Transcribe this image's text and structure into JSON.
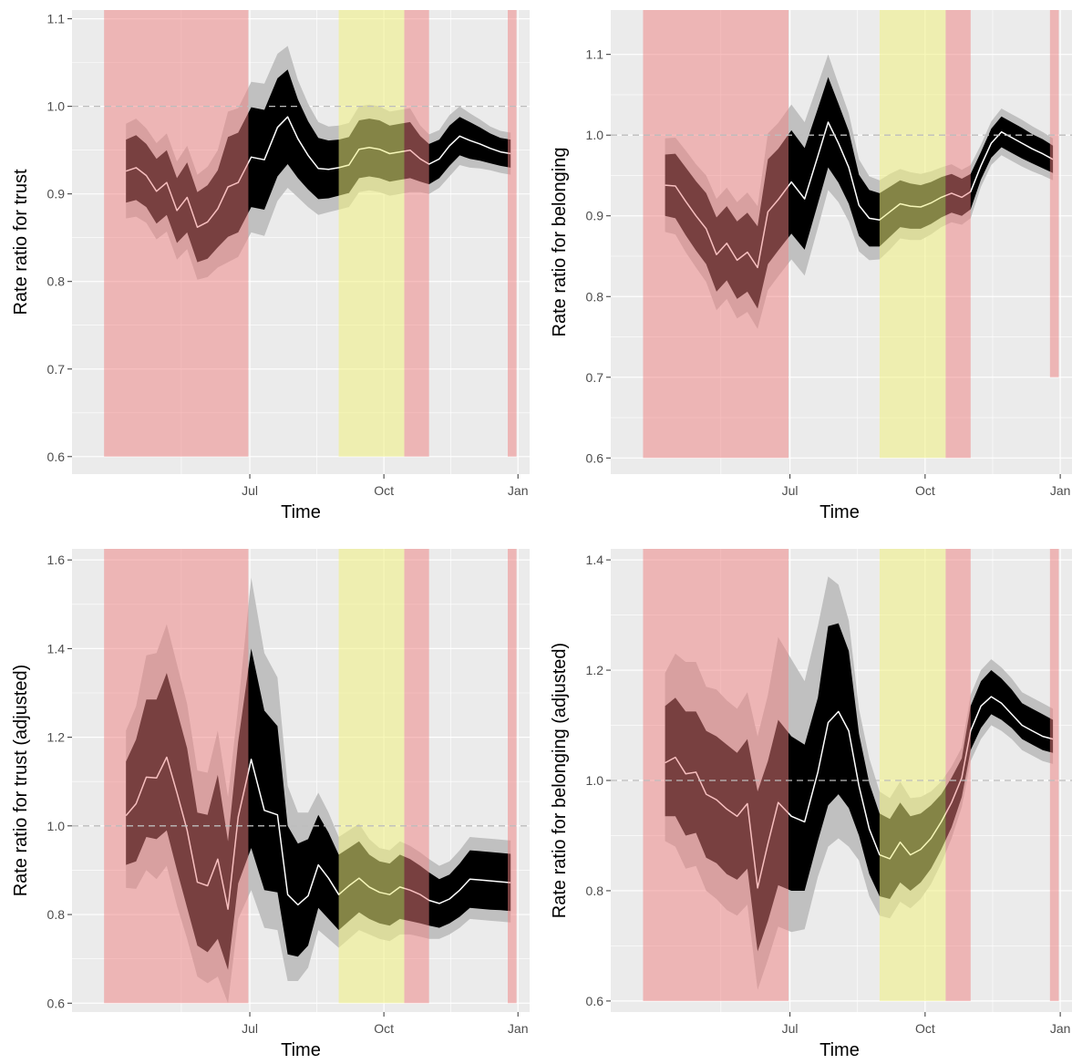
{
  "theme": {
    "panel_bg": "#EBEBEB",
    "grid_major": "#FFFFFF",
    "lockdown_shade": "#F08080",
    "tier_shade": "#F0F080",
    "ci95_color": "#C0C0C0",
    "ci68_color": "#000000",
    "line_color": "#FFFFFF",
    "reference_line_color": "#BDBDBD"
  },
  "chart_data": [
    {
      "type": "line",
      "xlabel": "Time",
      "ylabel": "Rate ratio for trust",
      "x_ticks": [
        "Jul",
        "Oct",
        "Jan"
      ],
      "ylim": [
        0.58,
        1.11
      ],
      "y_ticks": [
        "0.6",
        "0.7",
        "0.8",
        "0.9",
        "1.0",
        "1.1"
      ],
      "reference_line": 1.0,
      "shaded_regions": [
        {
          "kind": "lockdown",
          "start": "2020-03-23",
          "end": "2020-06-30",
          "y_bottom": 0.6
        },
        {
          "kind": "tiers",
          "start": "2020-08-31",
          "end": "2020-10-15",
          "y_bottom": 0.6
        },
        {
          "kind": "lockdown",
          "start": "2020-10-15",
          "end": "2020-11-01",
          "y_bottom": 0.6
        },
        {
          "kind": "lockdown",
          "start": "2020-12-25",
          "end": "2020-12-31",
          "y_bottom": 0.6
        }
      ],
      "dates": [
        "2020-04-07",
        "2020-04-14",
        "2020-04-21",
        "2020-04-28",
        "2020-05-05",
        "2020-05-12",
        "2020-05-19",
        "2020-05-26",
        "2020-06-02",
        "2020-06-09",
        "2020-06-16",
        "2020-06-23",
        "2020-07-02",
        "2020-07-11",
        "2020-07-20",
        "2020-07-27",
        "2020-08-03",
        "2020-08-10",
        "2020-08-17",
        "2020-08-24",
        "2020-08-31",
        "2020-09-07",
        "2020-09-14",
        "2020-09-21",
        "2020-09-28",
        "2020-10-05",
        "2020-10-12",
        "2020-10-19",
        "2020-10-26",
        "2020-11-01",
        "2020-11-08",
        "2020-11-15",
        "2020-11-22",
        "2020-11-29",
        "2020-12-06",
        "2020-12-13",
        "2020-12-20",
        "2020-12-27"
      ],
      "estimate": [
        0.926,
        0.93,
        0.921,
        0.903,
        0.913,
        0.881,
        0.896,
        0.862,
        0.868,
        0.883,
        0.908,
        0.913,
        0.942,
        0.939,
        0.976,
        0.988,
        0.963,
        0.944,
        0.929,
        0.928,
        0.93,
        0.933,
        0.951,
        0.953,
        0.951,
        0.946,
        0.948,
        0.95,
        0.94,
        0.934,
        0.94,
        0.955,
        0.966,
        0.961,
        0.957,
        0.952,
        0.948,
        0.946
      ],
      "ci68_low": [
        0.89,
        0.893,
        0.885,
        0.866,
        0.876,
        0.844,
        0.856,
        0.822,
        0.826,
        0.839,
        0.851,
        0.856,
        0.885,
        0.882,
        0.92,
        0.934,
        0.918,
        0.905,
        0.894,
        0.895,
        0.898,
        0.901,
        0.918,
        0.92,
        0.918,
        0.914,
        0.916,
        0.918,
        0.914,
        0.911,
        0.918,
        0.932,
        0.944,
        0.94,
        0.938,
        0.935,
        0.932,
        0.93
      ],
      "ci68_high": [
        0.962,
        0.967,
        0.957,
        0.94,
        0.95,
        0.918,
        0.936,
        0.902,
        0.91,
        0.927,
        0.965,
        0.97,
        0.999,
        0.996,
        1.032,
        1.042,
        1.008,
        0.983,
        0.964,
        0.961,
        0.962,
        0.965,
        0.984,
        0.986,
        0.984,
        0.978,
        0.98,
        0.982,
        0.966,
        0.957,
        0.962,
        0.978,
        0.988,
        0.982,
        0.976,
        0.969,
        0.964,
        0.962
      ],
      "ci95_low": [
        0.872,
        0.874,
        0.867,
        0.848,
        0.857,
        0.825,
        0.837,
        0.802,
        0.805,
        0.816,
        0.822,
        0.828,
        0.856,
        0.852,
        0.892,
        0.907,
        0.896,
        0.885,
        0.876,
        0.879,
        0.882,
        0.885,
        0.902,
        0.904,
        0.902,
        0.898,
        0.9,
        0.902,
        0.902,
        0.9,
        0.907,
        0.92,
        0.933,
        0.93,
        0.929,
        0.927,
        0.924,
        0.922
      ],
      "ci95_high": [
        0.98,
        0.986,
        0.975,
        0.958,
        0.969,
        0.937,
        0.955,
        0.922,
        0.931,
        0.95,
        0.994,
        0.998,
        1.028,
        1.026,
        1.06,
        1.069,
        1.03,
        1.003,
        0.982,
        0.977,
        0.978,
        0.981,
        1.0,
        1.002,
        1.0,
        0.994,
        0.996,
        0.998,
        0.978,
        0.968,
        0.973,
        0.99,
        1.0,
        0.992,
        0.985,
        0.977,
        0.972,
        0.97
      ]
    },
    {
      "type": "line",
      "xlabel": "Time",
      "ylabel": "Rate ratio for belonging",
      "x_ticks": [
        "Jul",
        "Oct",
        "Jan"
      ],
      "ylim": [
        0.58,
        1.155
      ],
      "y_ticks": [
        "0.6",
        "0.7",
        "0.8",
        "0.9",
        "1.0",
        "1.1"
      ],
      "reference_line": 1.0,
      "shaded_regions": [
        {
          "kind": "lockdown",
          "start": "2020-03-23",
          "end": "2020-06-30",
          "y_bottom": 0.6
        },
        {
          "kind": "tiers",
          "start": "2020-08-31",
          "end": "2020-10-15",
          "y_bottom": 0.6
        },
        {
          "kind": "lockdown",
          "start": "2020-10-15",
          "end": "2020-11-01",
          "y_bottom": 0.6
        },
        {
          "kind": "lockdown",
          "start": "2020-12-25",
          "end": "2020-12-31",
          "y_bottom": 0.7
        }
      ],
      "dates": [
        "2020-04-07",
        "2020-04-14",
        "2020-04-21",
        "2020-04-28",
        "2020-05-05",
        "2020-05-12",
        "2020-05-19",
        "2020-05-26",
        "2020-06-02",
        "2020-06-09",
        "2020-06-16",
        "2020-06-23",
        "2020-07-02",
        "2020-07-11",
        "2020-07-20",
        "2020-07-27",
        "2020-08-03",
        "2020-08-10",
        "2020-08-17",
        "2020-08-24",
        "2020-08-31",
        "2020-09-07",
        "2020-09-14",
        "2020-09-21",
        "2020-09-28",
        "2020-10-05",
        "2020-10-12",
        "2020-10-19",
        "2020-10-26",
        "2020-11-01",
        "2020-11-08",
        "2020-11-15",
        "2020-11-22",
        "2020-11-29",
        "2020-12-06",
        "2020-12-13",
        "2020-12-20",
        "2020-12-27"
      ],
      "estimate": [
        0.938,
        0.937,
        0.918,
        0.9,
        0.884,
        0.852,
        0.866,
        0.845,
        0.855,
        0.836,
        0.905,
        0.92,
        0.942,
        0.921,
        0.974,
        1.016,
        0.99,
        0.96,
        0.913,
        0.897,
        0.895,
        0.905,
        0.915,
        0.912,
        0.911,
        0.916,
        0.923,
        0.928,
        0.923,
        0.93,
        0.962,
        0.99,
        1.004,
        0.997,
        0.99,
        0.983,
        0.977,
        0.97
      ],
      "ci68_low": [
        0.9,
        0.897,
        0.876,
        0.857,
        0.84,
        0.806,
        0.82,
        0.797,
        0.806,
        0.785,
        0.84,
        0.857,
        0.878,
        0.858,
        0.915,
        0.96,
        0.941,
        0.915,
        0.875,
        0.862,
        0.862,
        0.874,
        0.886,
        0.884,
        0.884,
        0.89,
        0.898,
        0.904,
        0.9,
        0.908,
        0.945,
        0.972,
        0.985,
        0.978,
        0.971,
        0.965,
        0.959,
        0.953
      ],
      "ci68_high": [
        0.976,
        0.977,
        0.96,
        0.943,
        0.928,
        0.898,
        0.912,
        0.893,
        0.904,
        0.887,
        0.97,
        0.983,
        1.006,
        0.984,
        1.033,
        1.072,
        1.039,
        1.005,
        0.951,
        0.932,
        0.928,
        0.936,
        0.944,
        0.94,
        0.938,
        0.942,
        0.948,
        0.952,
        0.946,
        0.952,
        0.979,
        1.008,
        1.023,
        1.016,
        1.009,
        1.001,
        0.995,
        0.987
      ],
      "ci95_low": [
        0.88,
        0.877,
        0.855,
        0.836,
        0.818,
        0.783,
        0.797,
        0.773,
        0.781,
        0.76,
        0.808,
        0.825,
        0.846,
        0.826,
        0.885,
        0.932,
        0.917,
        0.893,
        0.856,
        0.845,
        0.846,
        0.858,
        0.872,
        0.87,
        0.87,
        0.877,
        0.886,
        0.892,
        0.889,
        0.897,
        0.936,
        0.963,
        0.975,
        0.968,
        0.961,
        0.955,
        0.95,
        0.944
      ],
      "ci95_high": [
        0.996,
        0.997,
        0.981,
        0.964,
        0.95,
        0.921,
        0.935,
        0.917,
        0.929,
        0.912,
        1.002,
        1.015,
        1.038,
        1.016,
        1.063,
        1.1,
        1.063,
        1.027,
        0.97,
        0.949,
        0.944,
        0.952,
        0.958,
        0.954,
        0.952,
        0.955,
        0.96,
        0.964,
        0.957,
        0.963,
        0.988,
        1.017,
        1.033,
        1.026,
        1.019,
        1.011,
        1.004,
        0.996
      ]
    },
    {
      "type": "line",
      "xlabel": "Time",
      "ylabel": "Rate ratio for trust (adjusted)",
      "x_ticks": [
        "Jul",
        "Oct",
        "Jan"
      ],
      "ylim": [
        0.58,
        1.625
      ],
      "y_ticks": [
        "0.6",
        "0.8",
        "1.0",
        "1.2",
        "1.4",
        "1.6"
      ],
      "reference_line": 1.0,
      "shaded_regions": [
        {
          "kind": "lockdown",
          "start": "2020-03-23",
          "end": "2020-06-30",
          "y_bottom": 0.6
        },
        {
          "kind": "tiers",
          "start": "2020-08-31",
          "end": "2020-10-15",
          "y_bottom": 0.6
        },
        {
          "kind": "lockdown",
          "start": "2020-10-15",
          "end": "2020-11-01",
          "y_bottom": 0.6
        },
        {
          "kind": "lockdown",
          "start": "2020-12-25",
          "end": "2020-12-31",
          "y_bottom": 0.6
        }
      ],
      "dates": [
        "2020-04-07",
        "2020-04-14",
        "2020-04-21",
        "2020-04-28",
        "2020-05-05",
        "2020-05-12",
        "2020-05-19",
        "2020-05-26",
        "2020-06-02",
        "2020-06-09",
        "2020-06-16",
        "2020-06-23",
        "2020-07-02",
        "2020-07-11",
        "2020-07-20",
        "2020-07-27",
        "2020-08-03",
        "2020-08-10",
        "2020-08-17",
        "2020-08-24",
        "2020-08-31",
        "2020-09-07",
        "2020-09-14",
        "2020-09-21",
        "2020-09-28",
        "2020-10-05",
        "2020-10-12",
        "2020-10-19",
        "2020-10-26",
        "2020-11-01",
        "2020-11-08",
        "2020-11-15",
        "2020-11-22",
        "2020-11-29",
        "2020-12-06",
        "2020-12-13",
        "2020-12-20",
        "2020-12-27"
      ],
      "estimate": [
        1.023,
        1.05,
        1.11,
        1.108,
        1.155,
        1.075,
        0.99,
        0.873,
        0.865,
        0.925,
        0.812,
        1.02,
        1.15,
        1.035,
        1.025,
        0.845,
        0.822,
        0.842,
        0.912,
        0.882,
        0.845,
        0.865,
        0.882,
        0.862,
        0.85,
        0.845,
        0.862,
        0.855,
        0.845,
        0.832,
        0.825,
        0.835,
        0.855,
        0.88,
        0.878,
        0.876,
        0.874,
        0.872
      ],
      "ci68_low": [
        0.912,
        0.92,
        0.975,
        0.97,
        0.99,
        0.9,
        0.815,
        0.73,
        0.715,
        0.745,
        0.675,
        0.87,
        0.95,
        0.855,
        0.85,
        0.71,
        0.705,
        0.73,
        0.815,
        0.79,
        0.765,
        0.785,
        0.805,
        0.79,
        0.78,
        0.775,
        0.79,
        0.785,
        0.78,
        0.775,
        0.77,
        0.78,
        0.795,
        0.815,
        0.813,
        0.811,
        0.81,
        0.808
      ],
      "ci68_high": [
        1.145,
        1.195,
        1.285,
        1.285,
        1.345,
        1.26,
        1.175,
        1.03,
        1.025,
        1.115,
        0.965,
        1.19,
        1.4,
        1.26,
        1.225,
        1.0,
        0.96,
        0.97,
        1.025,
        0.985,
        0.935,
        0.95,
        0.965,
        0.935,
        0.92,
        0.915,
        0.935,
        0.925,
        0.91,
        0.895,
        0.88,
        0.89,
        0.915,
        0.945,
        0.943,
        0.941,
        0.939,
        0.937
      ],
      "ci95_low": [
        0.86,
        0.858,
        0.9,
        0.88,
        0.91,
        0.82,
        0.745,
        0.66,
        0.645,
        0.66,
        0.6,
        0.79,
        0.855,
        0.77,
        0.765,
        0.65,
        0.65,
        0.68,
        0.765,
        0.745,
        0.725,
        0.745,
        0.765,
        0.755,
        0.745,
        0.74,
        0.755,
        0.755,
        0.75,
        0.745,
        0.745,
        0.755,
        0.77,
        0.79,
        0.788,
        0.786,
        0.784,
        0.782
      ],
      "ci95_high": [
        1.215,
        1.27,
        1.385,
        1.39,
        1.455,
        1.365,
        1.275,
        1.125,
        1.12,
        1.215,
        1.065,
        1.27,
        1.56,
        1.39,
        1.335,
        1.09,
        1.03,
        1.03,
        1.075,
        1.03,
        0.975,
        0.99,
        1.005,
        0.97,
        0.95,
        0.945,
        0.965,
        0.955,
        0.94,
        0.925,
        0.91,
        0.92,
        0.945,
        0.975,
        0.973,
        0.971,
        0.969,
        0.967
      ]
    },
    {
      "type": "line",
      "xlabel": "Time",
      "ylabel": "Rate ratio for belonging (adjusted)",
      "x_ticks": [
        "Jul",
        "Oct",
        "Jan"
      ],
      "ylim": [
        0.58,
        1.42
      ],
      "y_ticks": [
        "0.6",
        "0.8",
        "1.0",
        "1.2",
        "1.4"
      ],
      "reference_line": 1.0,
      "shaded_regions": [
        {
          "kind": "lockdown",
          "start": "2020-03-23",
          "end": "2020-06-30",
          "y_bottom": 0.6
        },
        {
          "kind": "tiers",
          "start": "2020-08-31",
          "end": "2020-10-15",
          "y_bottom": 0.6
        },
        {
          "kind": "lockdown",
          "start": "2020-10-15",
          "end": "2020-11-01",
          "y_bottom": 0.6
        },
        {
          "kind": "lockdown",
          "start": "2020-12-25",
          "end": "2020-12-31",
          "y_bottom": 0.6
        }
      ],
      "dates": [
        "2020-04-07",
        "2020-04-14",
        "2020-04-21",
        "2020-04-28",
        "2020-05-05",
        "2020-05-12",
        "2020-05-19",
        "2020-05-26",
        "2020-06-02",
        "2020-06-09",
        "2020-06-16",
        "2020-06-23",
        "2020-07-02",
        "2020-07-11",
        "2020-07-20",
        "2020-07-27",
        "2020-08-03",
        "2020-08-10",
        "2020-08-17",
        "2020-08-24",
        "2020-08-31",
        "2020-09-07",
        "2020-09-14",
        "2020-09-21",
        "2020-09-28",
        "2020-10-05",
        "2020-10-12",
        "2020-10-19",
        "2020-10-26",
        "2020-11-01",
        "2020-11-08",
        "2020-11-15",
        "2020-11-22",
        "2020-11-29",
        "2020-12-06",
        "2020-12-13",
        "2020-12-20",
        "2020-12-27"
      ],
      "estimate": [
        1.032,
        1.042,
        1.012,
        1.015,
        0.975,
        0.965,
        0.948,
        0.935,
        0.958,
        0.805,
        0.885,
        0.96,
        0.935,
        0.925,
        1.015,
        1.105,
        1.125,
        1.09,
        0.99,
        0.912,
        0.865,
        0.858,
        0.888,
        0.865,
        0.875,
        0.895,
        0.925,
        0.96,
        1.005,
        1.09,
        1.135,
        1.152,
        1.14,
        1.12,
        1.1,
        1.09,
        1.08,
        1.075
      ],
      "ci68_low": [
        0.935,
        0.935,
        0.9,
        0.905,
        0.86,
        0.85,
        0.83,
        0.82,
        0.84,
        0.69,
        0.745,
        0.81,
        0.8,
        0.8,
        0.89,
        0.955,
        0.975,
        0.95,
        0.9,
        0.83,
        0.79,
        0.785,
        0.815,
        0.8,
        0.815,
        0.84,
        0.875,
        0.915,
        0.97,
        1.055,
        1.095,
        1.12,
        1.11,
        1.095,
        1.075,
        1.065,
        1.055,
        1.05
      ],
      "ci68_high": [
        1.135,
        1.15,
        1.125,
        1.125,
        1.09,
        1.08,
        1.065,
        1.05,
        1.075,
        0.98,
        1.035,
        1.11,
        1.08,
        1.065,
        1.15,
        1.28,
        1.285,
        1.235,
        1.085,
        0.995,
        0.94,
        0.93,
        0.96,
        0.935,
        0.94,
        0.955,
        0.975,
        1.005,
        1.04,
        1.135,
        1.18,
        1.2,
        1.185,
        1.165,
        1.14,
        1.13,
        1.12,
        1.11
      ],
      "ci95_low": [
        0.89,
        0.88,
        0.84,
        0.845,
        0.8,
        0.785,
        0.765,
        0.755,
        0.775,
        0.62,
        0.675,
        0.735,
        0.725,
        0.73,
        0.825,
        0.88,
        0.895,
        0.88,
        0.855,
        0.79,
        0.755,
        0.75,
        0.78,
        0.768,
        0.785,
        0.812,
        0.85,
        0.895,
        0.952,
        1.035,
        1.075,
        1.1,
        1.09,
        1.075,
        1.055,
        1.045,
        1.035,
        1.03
      ],
      "ci95_high": [
        1.195,
        1.23,
        1.215,
        1.215,
        1.17,
        1.165,
        1.145,
        1.13,
        1.16,
        1.08,
        1.155,
        1.26,
        1.22,
        1.18,
        1.28,
        1.37,
        1.355,
        1.29,
        1.13,
        1.04,
        0.98,
        0.968,
        0.998,
        0.968,
        0.97,
        0.98,
        0.998,
        1.025,
        1.06,
        1.155,
        1.2,
        1.22,
        1.205,
        1.185,
        1.16,
        1.15,
        1.14,
        1.13
      ]
    }
  ]
}
